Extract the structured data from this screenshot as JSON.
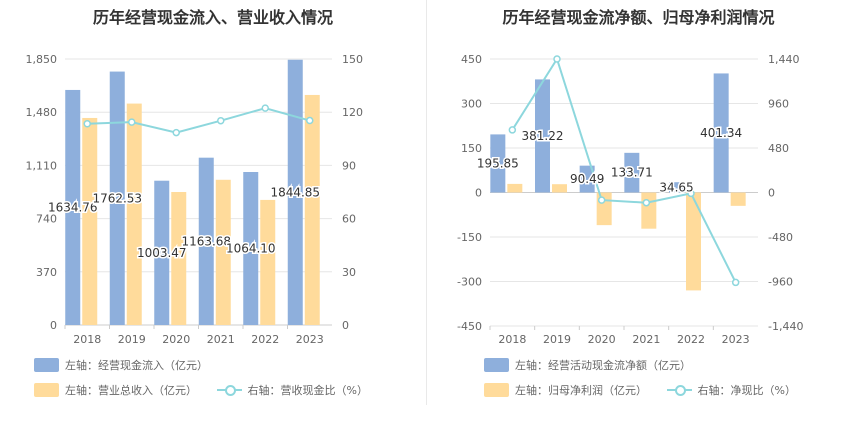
{
  "chart_data": [
    {
      "type": "bar",
      "title": "历年经营现金流入、营业收入情况",
      "categories": [
        "2018",
        "2019",
        "2020",
        "2021",
        "2022",
        "2023"
      ],
      "left_axis": {
        "ticks": [
          "0",
          "370",
          "740",
          "1,110",
          "1,480",
          "1,850"
        ],
        "ylim": [
          0,
          1850
        ]
      },
      "right_axis": {
        "ticks": [
          "0",
          "30",
          "60",
          "90",
          "120",
          "150"
        ],
        "ylim": [
          0,
          150
        ]
      },
      "series": [
        {
          "name": "左轴：经营现金流入（亿元）",
          "type": "bar",
          "axis": "left",
          "color": "#8eafdc",
          "values": [
            1634.76,
            1762.53,
            1003.47,
            1163.68,
            1064.1,
            1844.85
          ],
          "labels": [
            "1634.76",
            "1762.53",
            "1003.47",
            "1163.68",
            "1064.10",
            "1844.85"
          ]
        },
        {
          "name": "左轴：营业总收入（亿元）",
          "type": "bar",
          "axis": "left",
          "color": "#ffdb9b",
          "values": [
            1440,
            1540,
            925,
            1010,
            870,
            1600
          ]
        },
        {
          "name": "右轴：营收现金比（%）",
          "type": "line",
          "axis": "right",
          "color": "#8dd7dd",
          "values": [
            113.5,
            114.4,
            108.5,
            115.2,
            122.3,
            115.3
          ]
        }
      ],
      "legend": "bottom",
      "grid": true
    },
    {
      "type": "bar",
      "title": "历年经营现金流净额、归母净利润情况",
      "categories": [
        "2018",
        "2019",
        "2020",
        "2021",
        "2022",
        "2023"
      ],
      "left_axis": {
        "ticks": [
          "-450",
          "-300",
          "-150",
          "0",
          "150",
          "300",
          "450"
        ],
        "ylim": [
          -450,
          450
        ]
      },
      "right_axis": {
        "ticks": [
          "-1,440",
          "-960",
          "-480",
          "0",
          "480",
          "960",
          "1,440"
        ],
        "ylim": [
          -1440,
          1440
        ]
      },
      "series": [
        {
          "name": "左轴：经营活动现金流净额（亿元）",
          "type": "bar",
          "axis": "left",
          "color": "#8eafdc",
          "values": [
            195.85,
            381.22,
            90.49,
            133.71,
            34.65,
            401.34
          ],
          "labels": [
            "195.85",
            "381.22",
            "90.49",
            "133.71",
            "34.65",
            "401.34"
          ]
        },
        {
          "name": "左轴：归母净利润（亿元）",
          "type": "bar",
          "axis": "left",
          "color": "#ffdb9b",
          "values": [
            29,
            28,
            -110,
            -122,
            -330,
            -45
          ]
        },
        {
          "name": "右轴：净现比（%）",
          "type": "line",
          "axis": "right",
          "color": "#8dd7dd",
          "values": [
            675,
            1440,
            -82,
            -110,
            -10,
            -970
          ]
        }
      ],
      "legend": "bottom",
      "grid": true
    }
  ]
}
